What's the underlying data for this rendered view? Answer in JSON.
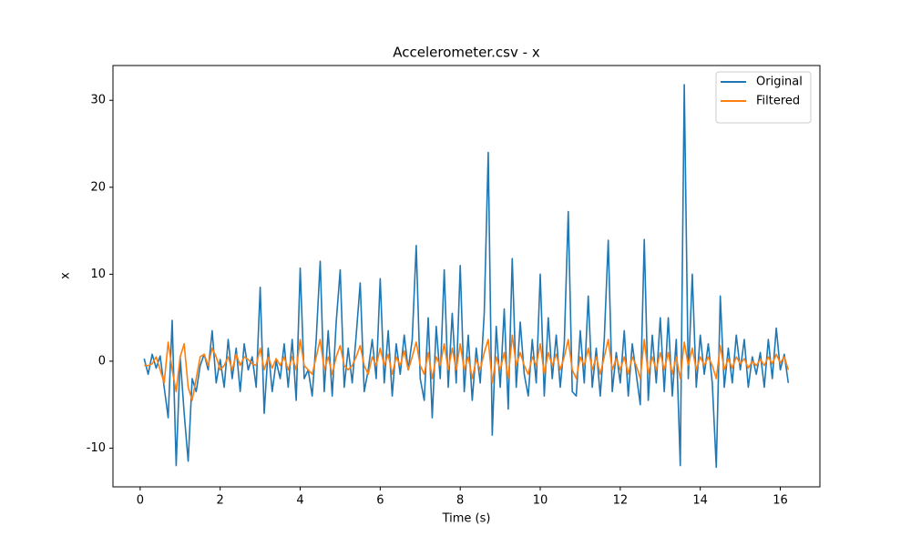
{
  "chart_data": {
    "type": "line",
    "title": "Accelerometer.csv - x",
    "xlabel": "Time (s)",
    "ylabel": "x",
    "x": [
      0.1,
      0.2,
      0.3,
      0.4,
      0.5,
      0.6,
      0.7,
      0.8,
      0.9,
      1.0,
      1.1,
      1.2,
      1.3,
      1.4,
      1.5,
      1.6,
      1.7,
      1.8,
      1.9,
      2.0,
      2.1,
      2.2,
      2.3,
      2.4,
      2.5,
      2.6,
      2.7,
      2.8,
      2.9,
      3.0,
      3.1,
      3.2,
      3.3,
      3.4,
      3.5,
      3.6,
      3.7,
      3.8,
      3.9,
      4.0,
      4.1,
      4.2,
      4.3,
      4.4,
      4.5,
      4.6,
      4.7,
      4.8,
      4.9,
      5.0,
      5.1,
      5.2,
      5.3,
      5.4,
      5.5,
      5.6,
      5.7,
      5.8,
      5.9,
      6.0,
      6.1,
      6.2,
      6.3,
      6.4,
      6.5,
      6.6,
      6.7,
      6.8,
      6.9,
      7.0,
      7.1,
      7.2,
      7.3,
      7.4,
      7.5,
      7.6,
      7.7,
      7.8,
      7.9,
      8.0,
      8.1,
      8.2,
      8.3,
      8.4,
      8.5,
      8.6,
      8.7,
      8.8,
      8.9,
      9.0,
      9.1,
      9.2,
      9.3,
      9.4,
      9.5,
      9.6,
      9.7,
      9.8,
      9.9,
      10.0,
      10.1,
      10.2,
      10.3,
      10.4,
      10.5,
      10.6,
      10.7,
      10.8,
      10.9,
      11.0,
      11.1,
      11.2,
      11.3,
      11.4,
      11.5,
      11.6,
      11.7,
      11.8,
      11.9,
      12.0,
      12.1,
      12.2,
      12.3,
      12.4,
      12.5,
      12.6,
      12.7,
      12.8,
      12.9,
      13.0,
      13.1,
      13.2,
      13.3,
      13.4,
      13.5,
      13.6,
      13.7,
      13.8,
      13.9,
      14.0,
      14.1,
      14.2,
      14.3,
      14.4,
      14.5,
      14.6,
      14.7,
      14.8,
      14.9,
      15.0,
      15.1,
      15.2,
      15.3,
      15.4,
      15.5,
      15.6,
      15.7,
      15.8,
      15.9,
      16.0,
      16.1,
      16.2
    ],
    "series": [
      {
        "name": "Original",
        "color": "#1f77b4",
        "values": [
          0.3,
          -1.5,
          0.8,
          -0.8,
          0.6,
          -3.0,
          -6.5,
          4.7,
          -12.0,
          0.5,
          -6.0,
          -11.5,
          -2.0,
          -3.5,
          -0.5,
          0.8,
          -1.0,
          3.5,
          -2.5,
          0.2,
          -3.0,
          2.5,
          -2.0,
          1.5,
          -3.5,
          2.0,
          -1.0,
          0.5,
          -3.0,
          8.5,
          -6.0,
          1.5,
          -3.5,
          0.0,
          -2.0,
          2.0,
          -3.0,
          2.5,
          -4.5,
          10.7,
          -2.0,
          -1.0,
          -4.0,
          2.5,
          11.5,
          -3.5,
          3.5,
          -4.0,
          4.5,
          10.5,
          -3.0,
          1.5,
          -2.5,
          3.0,
          9.0,
          -3.5,
          -1.0,
          2.5,
          -2.0,
          9.5,
          -2.5,
          3.5,
          -4.0,
          2.0,
          -1.5,
          3.0,
          -1.0,
          2.5,
          13.3,
          -2.0,
          -4.5,
          5.0,
          -6.5,
          4.0,
          -2.0,
          10.5,
          -3.0,
          5.5,
          -2.5,
          11.0,
          -3.5,
          3.0,
          -4.5,
          1.5,
          -2.5,
          5.5,
          24.0,
          -8.5,
          4.0,
          -3.0,
          6.0,
          -5.5,
          11.8,
          -3.0,
          4.5,
          -1.5,
          -4.0,
          2.5,
          -2.5,
          10.0,
          -4.0,
          5.0,
          -2.0,
          3.0,
          -3.0,
          2.0,
          17.2,
          -3.5,
          -4.0,
          3.5,
          -2.5,
          7.5,
          -3.0,
          1.5,
          -4.0,
          2.5,
          13.9,
          -3.5,
          1.0,
          -2.5,
          3.5,
          -4.0,
          2.0,
          -1.5,
          -5.0,
          14.0,
          -4.5,
          3.0,
          -2.5,
          5.0,
          -3.5,
          5.0,
          -4.0,
          2.5,
          -12.0,
          31.8,
          -2.0,
          10.0,
          -3.0,
          3.0,
          -1.5,
          2.0,
          -2.5,
          -12.2,
          7.5,
          -3.0,
          1.5,
          -2.5,
          3.0,
          -1.0,
          2.5,
          -3.0,
          0.5,
          -1.5,
          1.0,
          -3.0,
          2.5,
          -2.0,
          3.8,
          -1.0,
          0.8,
          -2.5
        ]
      },
      {
        "name": "Filtered",
        "color": "#ff7f0e",
        "values": [
          -0.5,
          -0.5,
          -0.3,
          0.5,
          -1.0,
          -2.5,
          2.2,
          -1.0,
          -3.5,
          0.5,
          2.0,
          -3.0,
          -4.5,
          -2.0,
          0.5,
          0.8,
          -0.5,
          1.5,
          0.5,
          -1.0,
          -0.5,
          0.5,
          -1.0,
          0.8,
          -0.5,
          0.5,
          0.2,
          -0.3,
          -0.5,
          1.5,
          -1.0,
          0.5,
          -0.8,
          0.3,
          -0.5,
          0.5,
          -1.0,
          0.5,
          -1.0,
          2.5,
          -0.5,
          -1.0,
          -1.5,
          0.5,
          2.5,
          -1.0,
          0.5,
          -1.5,
          0.5,
          1.8,
          -0.5,
          -1.0,
          -0.5,
          0.5,
          1.8,
          -0.5,
          -1.5,
          0.5,
          -0.5,
          1.5,
          -0.5,
          0.8,
          -1.5,
          0.5,
          -0.5,
          1.2,
          -1.0,
          0.5,
          2.2,
          -0.5,
          -1.5,
          1.0,
          -2.0,
          0.5,
          -0.5,
          2.0,
          -1.0,
          1.5,
          -1.0,
          2.0,
          -1.0,
          0.5,
          -2.0,
          0.2,
          -1.0,
          1.0,
          2.5,
          -2.5,
          0.5,
          -1.0,
          1.0,
          -2.0,
          3.0,
          -0.5,
          1.0,
          -0.5,
          -1.5,
          0.5,
          -0.5,
          2.0,
          -1.5,
          1.0,
          -0.5,
          0.8,
          -1.0,
          0.5,
          2.5,
          -1.0,
          -2.0,
          0.5,
          -0.5,
          1.5,
          -1.0,
          0.5,
          -1.5,
          0.5,
          2.5,
          -1.0,
          0.3,
          -1.0,
          0.5,
          -1.5,
          0.5,
          -0.5,
          -2.0,
          2.5,
          -1.5,
          0.5,
          -1.0,
          1.0,
          -1.0,
          1.0,
          -1.5,
          0.5,
          -2.0,
          2.2,
          -0.5,
          1.5,
          -1.0,
          0.5,
          -0.5,
          0.5,
          -0.5,
          -2.0,
          1.8,
          -1.0,
          0.3,
          -0.8,
          0.5,
          -0.3,
          0.3,
          -0.8,
          0.0,
          -0.5,
          0.2,
          -0.5,
          0.5,
          -0.3,
          0.8,
          -0.2,
          0.5,
          -1.0
        ]
      }
    ],
    "xlim": [
      -0.68,
      16.99
    ],
    "ylim": [
      -14.45,
      34.0
    ],
    "xticks": [
      0,
      2,
      4,
      6,
      8,
      10,
      12,
      14,
      16
    ],
    "yticks": [
      -10,
      0,
      10,
      20,
      30
    ],
    "legend": "upper right"
  }
}
